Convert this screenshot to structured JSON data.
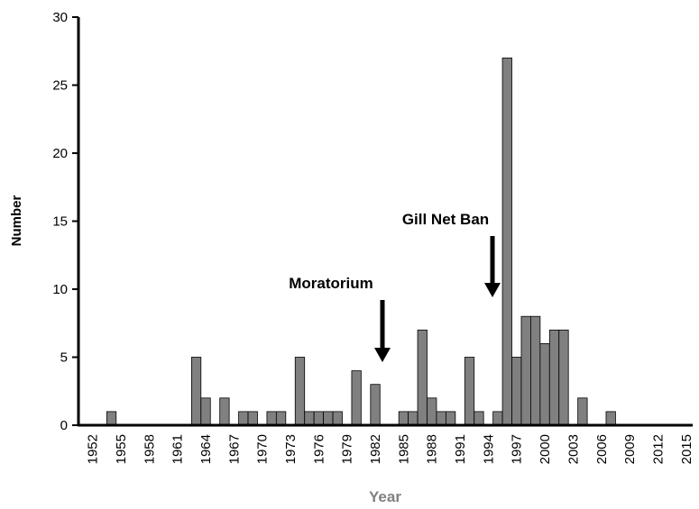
{
  "chart_data": {
    "type": "bar",
    "x_label": "Year",
    "y_label": "Number",
    "categories": [
      null,
      "1952",
      null,
      null,
      "1955",
      null,
      null,
      "1958",
      null,
      null,
      "1961",
      null,
      null,
      "1964",
      null,
      null,
      "1967",
      null,
      null,
      "1970",
      null,
      null,
      "1973",
      null,
      null,
      "1976",
      null,
      null,
      "1979",
      null,
      null,
      "1982",
      null,
      null,
      "1985",
      null,
      null,
      "1988",
      null,
      null,
      "1991",
      null,
      null,
      "1994",
      null,
      null,
      "1997",
      null,
      null,
      "2000",
      null,
      null,
      "2003",
      null,
      null,
      "2006",
      null,
      null,
      "2009",
      null,
      null,
      "2012",
      null,
      null,
      "2015"
    ],
    "values": [
      0,
      0,
      0,
      1,
      0,
      0,
      0,
      0,
      0,
      0,
      0,
      0,
      5,
      2,
      0,
      2,
      0,
      1,
      1,
      0,
      1,
      1,
      0,
      5,
      1,
      1,
      1,
      1,
      0,
      4,
      0,
      3,
      0,
      0,
      1,
      1,
      7,
      2,
      1,
      1,
      0,
      5,
      1,
      0,
      1,
      27,
      5,
      8,
      8,
      6,
      7,
      7,
      0,
      2,
      0,
      0,
      1,
      0,
      0,
      0,
      0,
      0,
      0,
      0,
      0
    ],
    "color": "#808080",
    "ylim": [
      0,
      30
    ],
    "yticks": [
      0,
      5,
      10,
      15,
      20,
      25,
      30
    ],
    "annotations": [
      {
        "text": "Moratorium"
      },
      {
        "text": "Gill Net Ban"
      }
    ]
  }
}
